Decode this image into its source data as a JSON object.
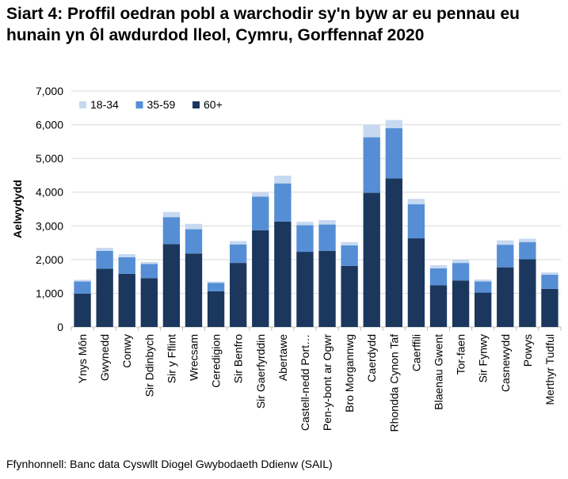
{
  "chart_data": {
    "type": "bar",
    "stacked": true,
    "title": "Siart 4: Proffil oedran pobl a warchodir sy'n byw ar eu pennau eu hunain yn ôl awdurdod lleol, Cymru, Gorffennaf 2020",
    "ylabel": "Aelwydydd",
    "xlabel": "",
    "ylim": [
      0,
      7000
    ],
    "yticks": [
      "0",
      "1,000",
      "2,000",
      "3,000",
      "4,000",
      "5,000",
      "6,000",
      "7,000"
    ],
    "grid": true,
    "legend_position": "top-left",
    "categories": [
      "Ynys Môn",
      "Gwynedd",
      "Conwy",
      "Sir Ddinbych",
      "Sir y Fflint",
      "Wrecsam",
      "Ceredigion",
      "Sir Benfro",
      "Sir Gaerfyrddin",
      "Abertawe",
      "Castell-nedd Port…",
      "Pen-y-bont ar Ogwr",
      "Bro Morgannwg",
      "Caerdydd",
      "Rhondda Cynon Taf",
      "Caerffili",
      "Blaenau Gwent",
      "Tor-faen",
      "Sir Fynwy",
      "Casnewydd",
      "Powys",
      "Merthyr Tudful"
    ],
    "series": [
      {
        "name": "60+",
        "color": "#1b375e",
        "values": [
          990,
          1730,
          1580,
          1450,
          2460,
          2180,
          1060,
          1900,
          2870,
          3130,
          2230,
          2260,
          1810,
          3980,
          4410,
          2630,
          1240,
          1380,
          1020,
          1770,
          2010,
          1130
        ]
      },
      {
        "name": "35-59",
        "color": "#558ed5",
        "values": [
          360,
          530,
          490,
          420,
          800,
          720,
          250,
          550,
          1000,
          1130,
          790,
          780,
          610,
          1650,
          1490,
          1010,
          500,
          520,
          330,
          670,
          510,
          420
        ]
      },
      {
        "name": "18-34",
        "color": "#c6d9f1",
        "values": [
          50,
          90,
          90,
          60,
          150,
          160,
          40,
          100,
          120,
          230,
          100,
          130,
          100,
          370,
          240,
          160,
          90,
          100,
          60,
          130,
          100,
          70
        ]
      }
    ],
    "legend_order": [
      "18-34",
      "35-59",
      "60+"
    ]
  },
  "source": "Ffynhonnell: Banc data Cyswllt Diogel Gwybodaeth Ddienw (SAIL)"
}
